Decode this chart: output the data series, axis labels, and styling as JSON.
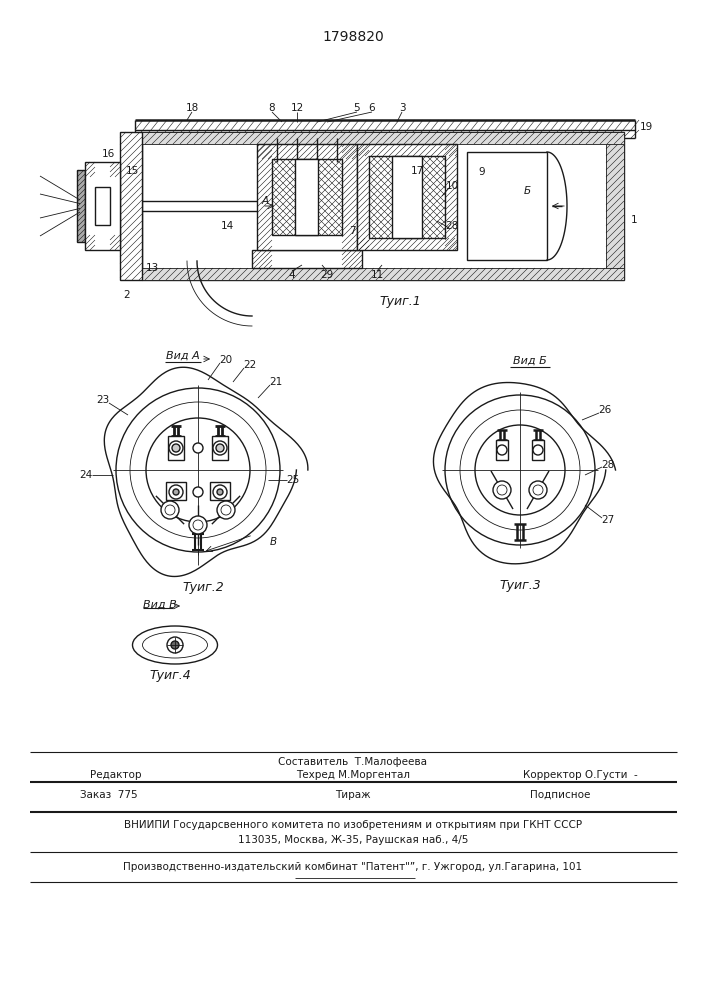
{
  "title": "1798820",
  "bg_color": "#ffffff",
  "line_color": "#1a1a1a",
  "fig1_caption": "Τуиг.1",
  "fig2_caption": "Τуиг.2",
  "fig3_caption": "Τуиг.3",
  "fig4_caption": "Τуиг.4",
  "vidA": "Вид A",
  "vidB_label": "Вид Б",
  "vidV": "Вид В",
  "footer_sostavitel": "Составитель  Т.Малофеева",
  "footer_redaktor": "Редактор",
  "footer_tehred": "Техред М.Моргентал",
  "footer_korrektor": "Корректор О.Густи  -",
  "footer_order": "Заказ  775",
  "footer_tirazh": "Тираж",
  "footer_podp": "Подписное",
  "footer_vnipi": "ВНИИПИ Государственного комитета по изобретениям и открытиям при ГКНТ СССР",
  "footer_address": "113035, Москва, Ж-35, Раушская наб., 4/5",
  "footer_plant": "Производственно-издательский комбинат \"Патент\"”, г. Ужгород, ул.Гагарина, 101"
}
